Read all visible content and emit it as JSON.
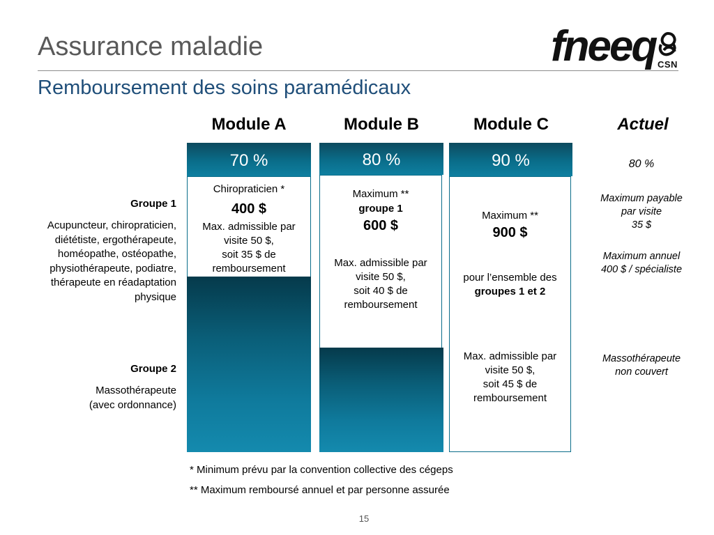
{
  "slide": {
    "title": "Assurance maladie",
    "subtitle": "Remboursement des soins paramédicaux",
    "logo": {
      "name": "fneeq",
      "tag": "CSN"
    },
    "page_number": "15"
  },
  "columns": {
    "a": {
      "header": "Module A",
      "pct": "70 %"
    },
    "b": {
      "header": "Module B",
      "pct": "80 %"
    },
    "c": {
      "header": "Module C",
      "pct": "90 %"
    },
    "actuel": {
      "header": "Actuel",
      "pct": "80 %"
    }
  },
  "left": {
    "groupe1_title": "Groupe 1",
    "groupe1_lines": [
      "Acupuncteur, chiropraticien,",
      "diététiste, ergothérapeute,",
      "homéopathe, ostéopathe,",
      "physiothérapeute, podiatre,",
      "thérapeute en réadaptation",
      "physique"
    ],
    "groupe2_title": "Groupe 2",
    "groupe2_lines": [
      "Massothérapeute",
      "(avec ordonnance)"
    ]
  },
  "module_a": {
    "label": "Chiropraticien *",
    "amount": "400 $",
    "lines": [
      "Max. admissible par",
      "visite 50 $,",
      "soit 35 $ de",
      "remboursement"
    ]
  },
  "module_b": {
    "max_label": "Maximum **",
    "group_label": "groupe 1",
    "amount": "600 $",
    "lines": [
      "Max. admissible par",
      "visite 50 $,",
      "soit 40 $ de",
      "remboursement"
    ]
  },
  "module_c": {
    "max_label": "Maximum **",
    "amount": "900 $",
    "scope_line1": "pour l’ensemble des",
    "scope_line2": "groupes 1 et 2",
    "lines": [
      "Max. admissible par",
      "visite 50 $,",
      "soit 45 $ de",
      "remboursement"
    ]
  },
  "actuel": {
    "visit_lines": [
      "Maximum payable",
      "par visite",
      "35 $"
    ],
    "annual_lines": [
      "Maximum annuel",
      "400 $ / spécialiste"
    ],
    "masso_lines": [
      "Massothérapeute",
      "non couvert"
    ]
  },
  "notes": {
    "note1": "* Minimum prévu par la convention collective des cégeps",
    "note2": "** Maximum remboursé annuel et par personne assurée"
  },
  "colors": {
    "teal_dark": "#053a4b",
    "teal_light": "#148aae",
    "title_gray": "#595959",
    "subtitle_blue": "#1f4e79"
  }
}
